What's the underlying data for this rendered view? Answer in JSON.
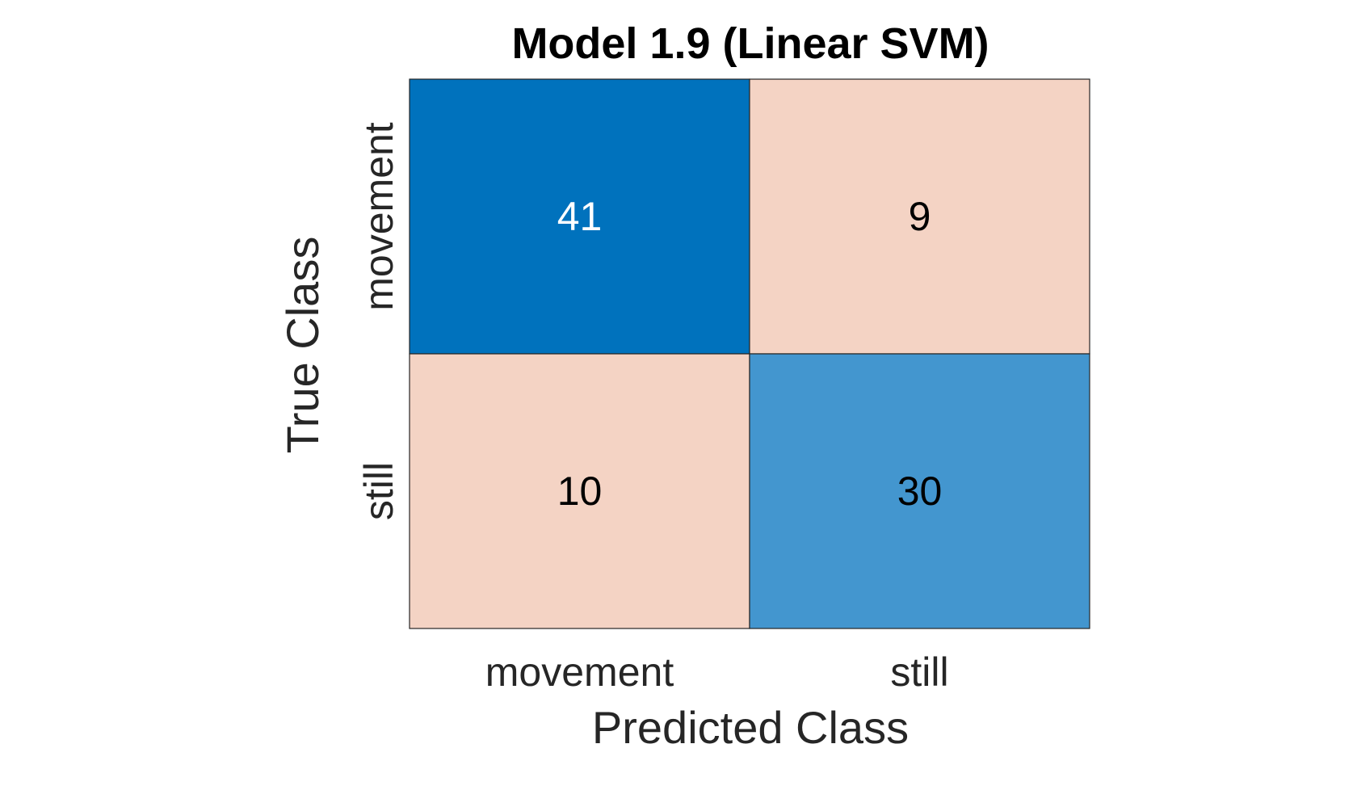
{
  "chart_data": {
    "type": "heatmap",
    "title": "Model 1.9 (Linear SVM)",
    "xlabel": "Predicted Class",
    "ylabel": "True Class",
    "x_categories": [
      "movement",
      "still"
    ],
    "y_categories": [
      "movement",
      "still"
    ],
    "values": [
      [
        41,
        9
      ],
      [
        10,
        30
      ]
    ],
    "grid": false,
    "legend": "none",
    "colors": {
      "diag_high": "#0072bd",
      "diag_low": "#4396cf",
      "off_diag": "#f4d3c4",
      "border": "#262626",
      "text_dark": "#000000",
      "text_light": "#ffffff",
      "axis_text": "#262626"
    }
  }
}
